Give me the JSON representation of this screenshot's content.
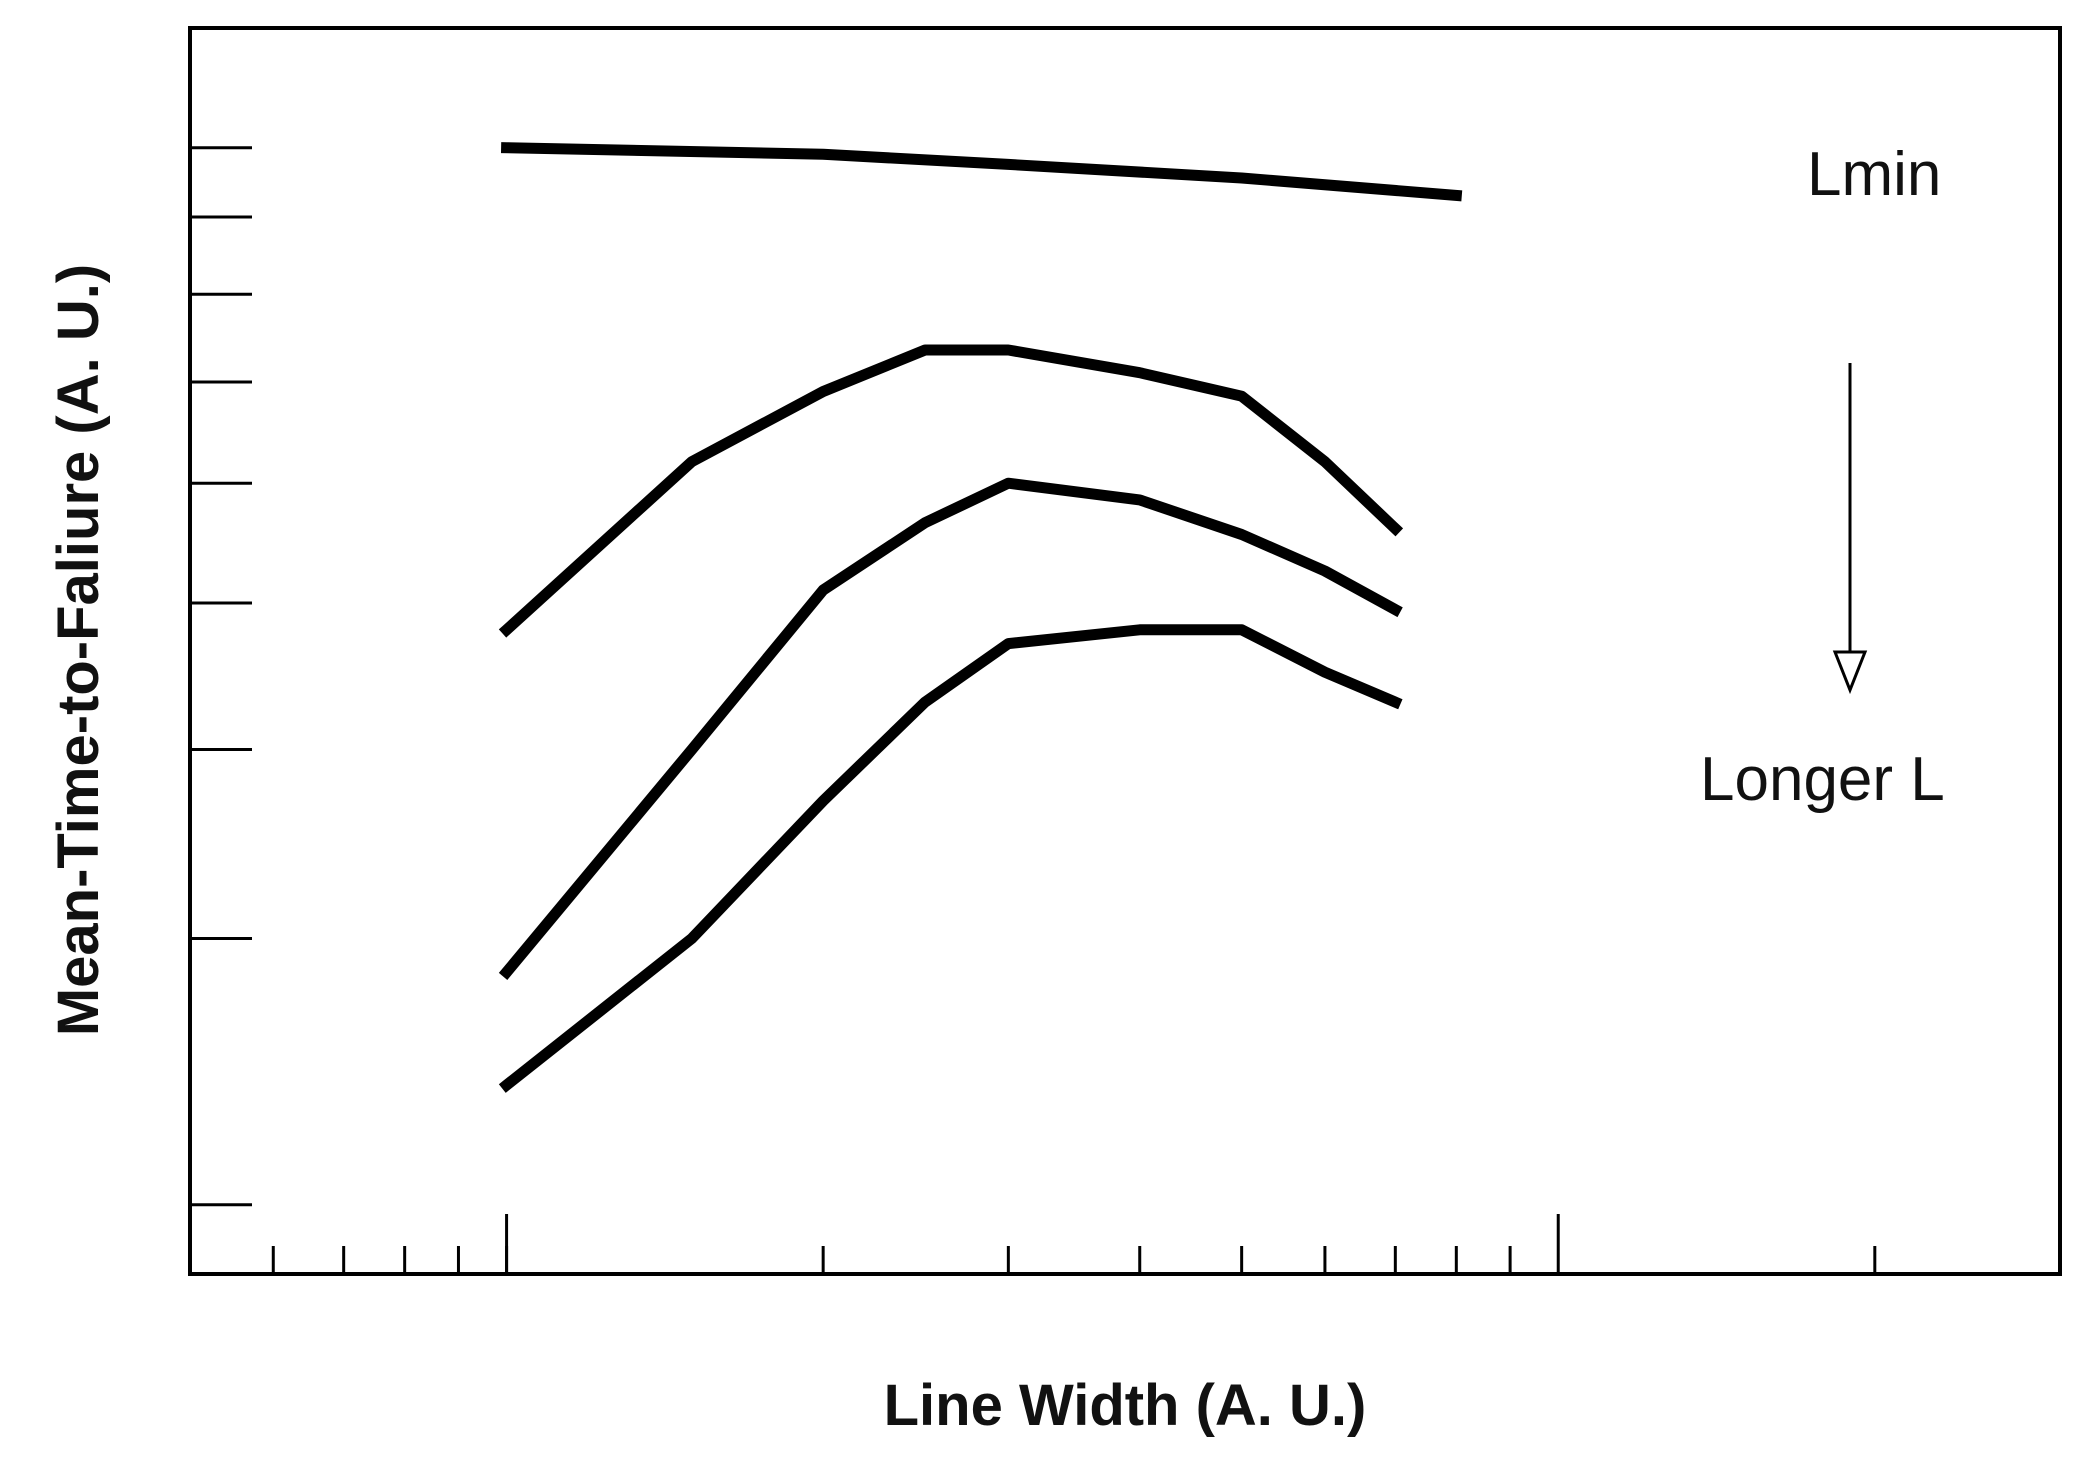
{
  "chart_data": {
    "type": "line",
    "title": "",
    "xlabel": "Line Width (A. U.)",
    "ylabel": "Mean-Time-to-Faliure (A. U.)",
    "x_scale": "log",
    "y_scale": "log",
    "xlim": [
      0.5,
      30
    ],
    "ylim": [
      0.18,
      1.2
    ],
    "grid": false,
    "legend": "none",
    "series": [
      {
        "name": "Lmin",
        "x": [
          1,
          2,
          3,
          5,
          8
        ],
        "y": [
          1.0,
          0.99,
          0.975,
          0.955,
          0.93
        ]
      },
      {
        "name": "",
        "x": [
          1,
          1.5,
          2,
          2.5,
          3,
          4,
          5,
          6,
          7
        ],
        "y": [
          0.48,
          0.62,
          0.69,
          0.735,
          0.735,
          0.71,
          0.685,
          0.62,
          0.56
        ]
      },
      {
        "name": "",
        "x": [
          1,
          1.5,
          2,
          2.5,
          3,
          4,
          5,
          6,
          7
        ],
        "y": [
          0.285,
          0.4,
          0.51,
          0.565,
          0.6,
          0.585,
          0.555,
          0.525,
          0.495
        ]
      },
      {
        "name": "",
        "x": [
          1,
          1.5,
          2,
          2.5,
          3,
          4,
          5,
          6,
          7
        ],
        "y": [
          0.24,
          0.3,
          0.37,
          0.43,
          0.47,
          0.48,
          0.48,
          0.45,
          0.43
        ]
      }
    ],
    "annotations": [
      {
        "text": "Lmin",
        "target": "top series"
      },
      {
        "text": "Longer L",
        "target": "downward arrow, trend with increasing line length"
      }
    ]
  }
}
